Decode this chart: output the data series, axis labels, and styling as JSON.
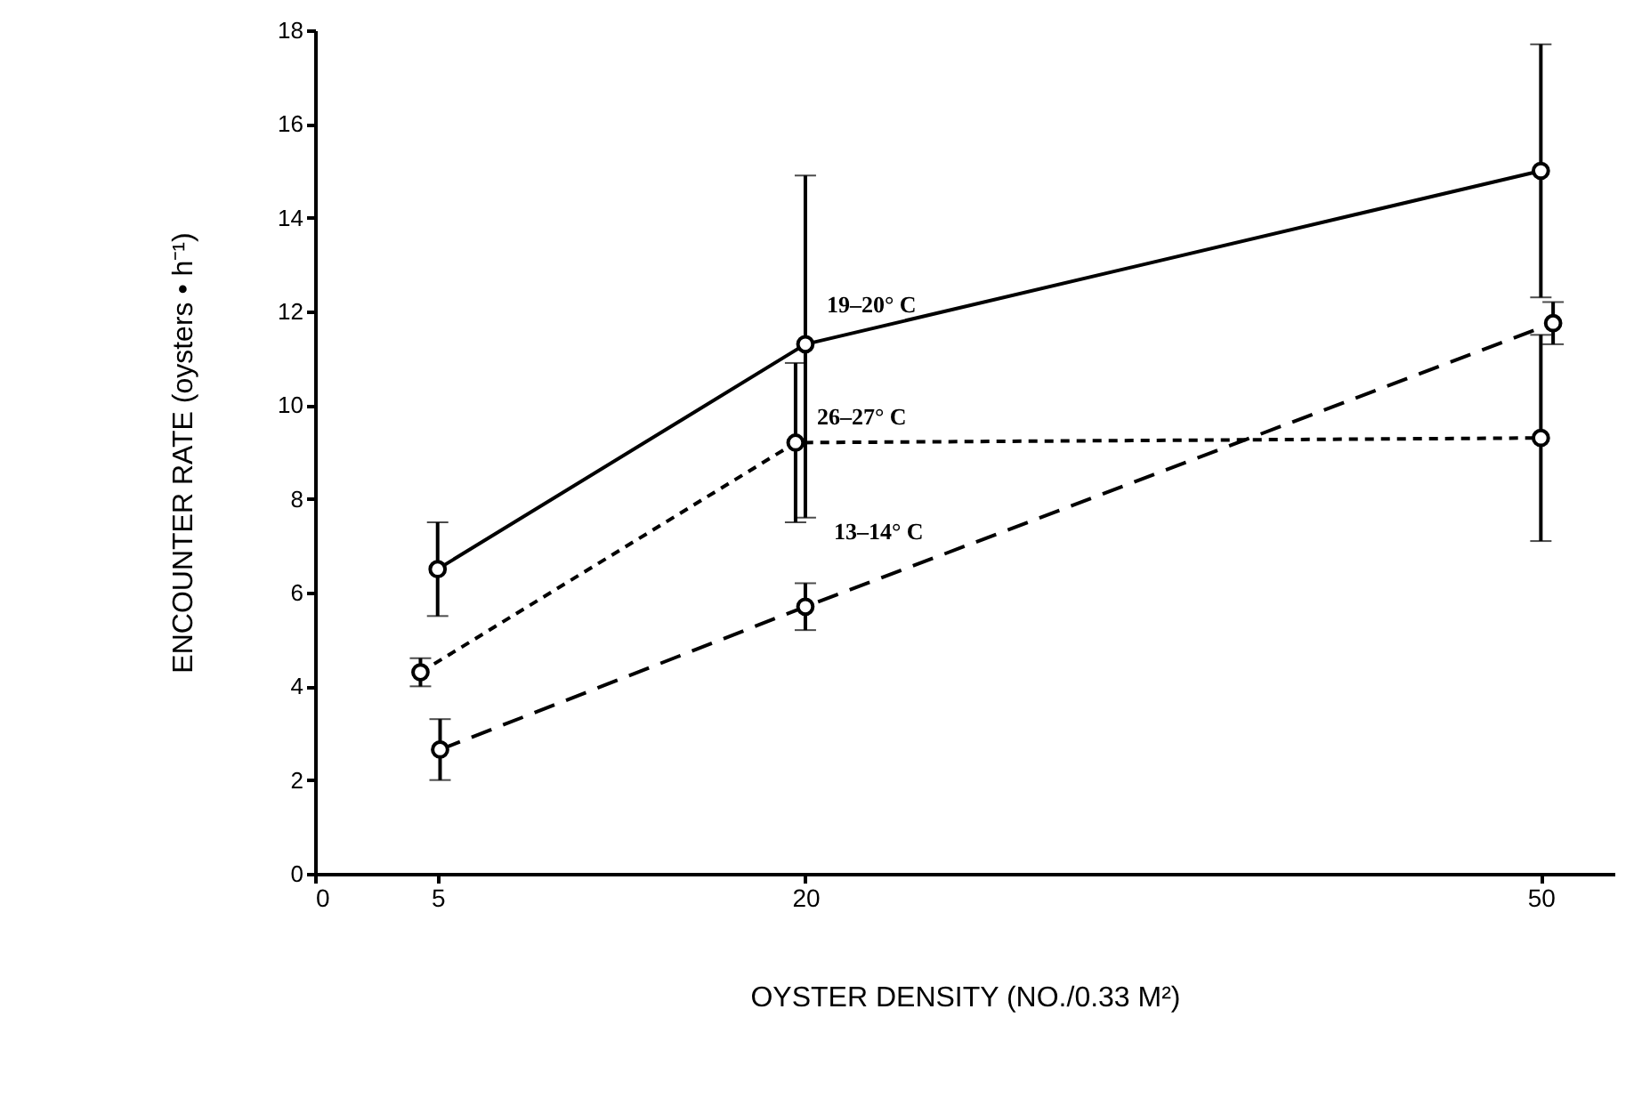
{
  "chart_data": {
    "type": "line",
    "xlabel": "OYSTER DENSITY (NO./0.33 M²)",
    "ylabel": "ENCOUNTER RATE (oysters • h⁻¹)",
    "xlim": [
      0,
      53
    ],
    "xticks": [
      0,
      5,
      20,
      50
    ],
    "ylim": [
      0,
      18
    ],
    "yticks": [
      0,
      2,
      4,
      6,
      8,
      10,
      12,
      14,
      16,
      18
    ],
    "grid": false,
    "marker": "circle",
    "series": [
      {
        "name": "19–20° C",
        "color": "#000000",
        "line_style": "solid",
        "x": [
          5,
          20,
          50
        ],
        "values": [
          6.5,
          11.3,
          15.0
        ],
        "errors": [
          [
            5.5,
            7.5
          ],
          [
            7.6,
            14.9
          ],
          [
            12.3,
            17.7
          ]
        ]
      },
      {
        "name": "26–27° C",
        "color": "#000000",
        "line_style": "dotted",
        "x": [
          4.3,
          19.6,
          50
        ],
        "values": [
          4.3,
          9.2,
          9.3
        ],
        "errors": [
          [
            4.0,
            4.6
          ],
          [
            7.5,
            10.9
          ],
          [
            7.1,
            11.5
          ]
        ]
      },
      {
        "name": "13–14° C",
        "color": "#000000",
        "line_style": "dashed",
        "x": [
          5.1,
          20,
          50.5
        ],
        "values": [
          2.65,
          5.7,
          11.75
        ],
        "errors": [
          [
            2.0,
            3.3
          ],
          [
            5.2,
            6.2
          ],
          [
            11.3,
            12.2
          ]
        ]
      }
    ]
  }
}
